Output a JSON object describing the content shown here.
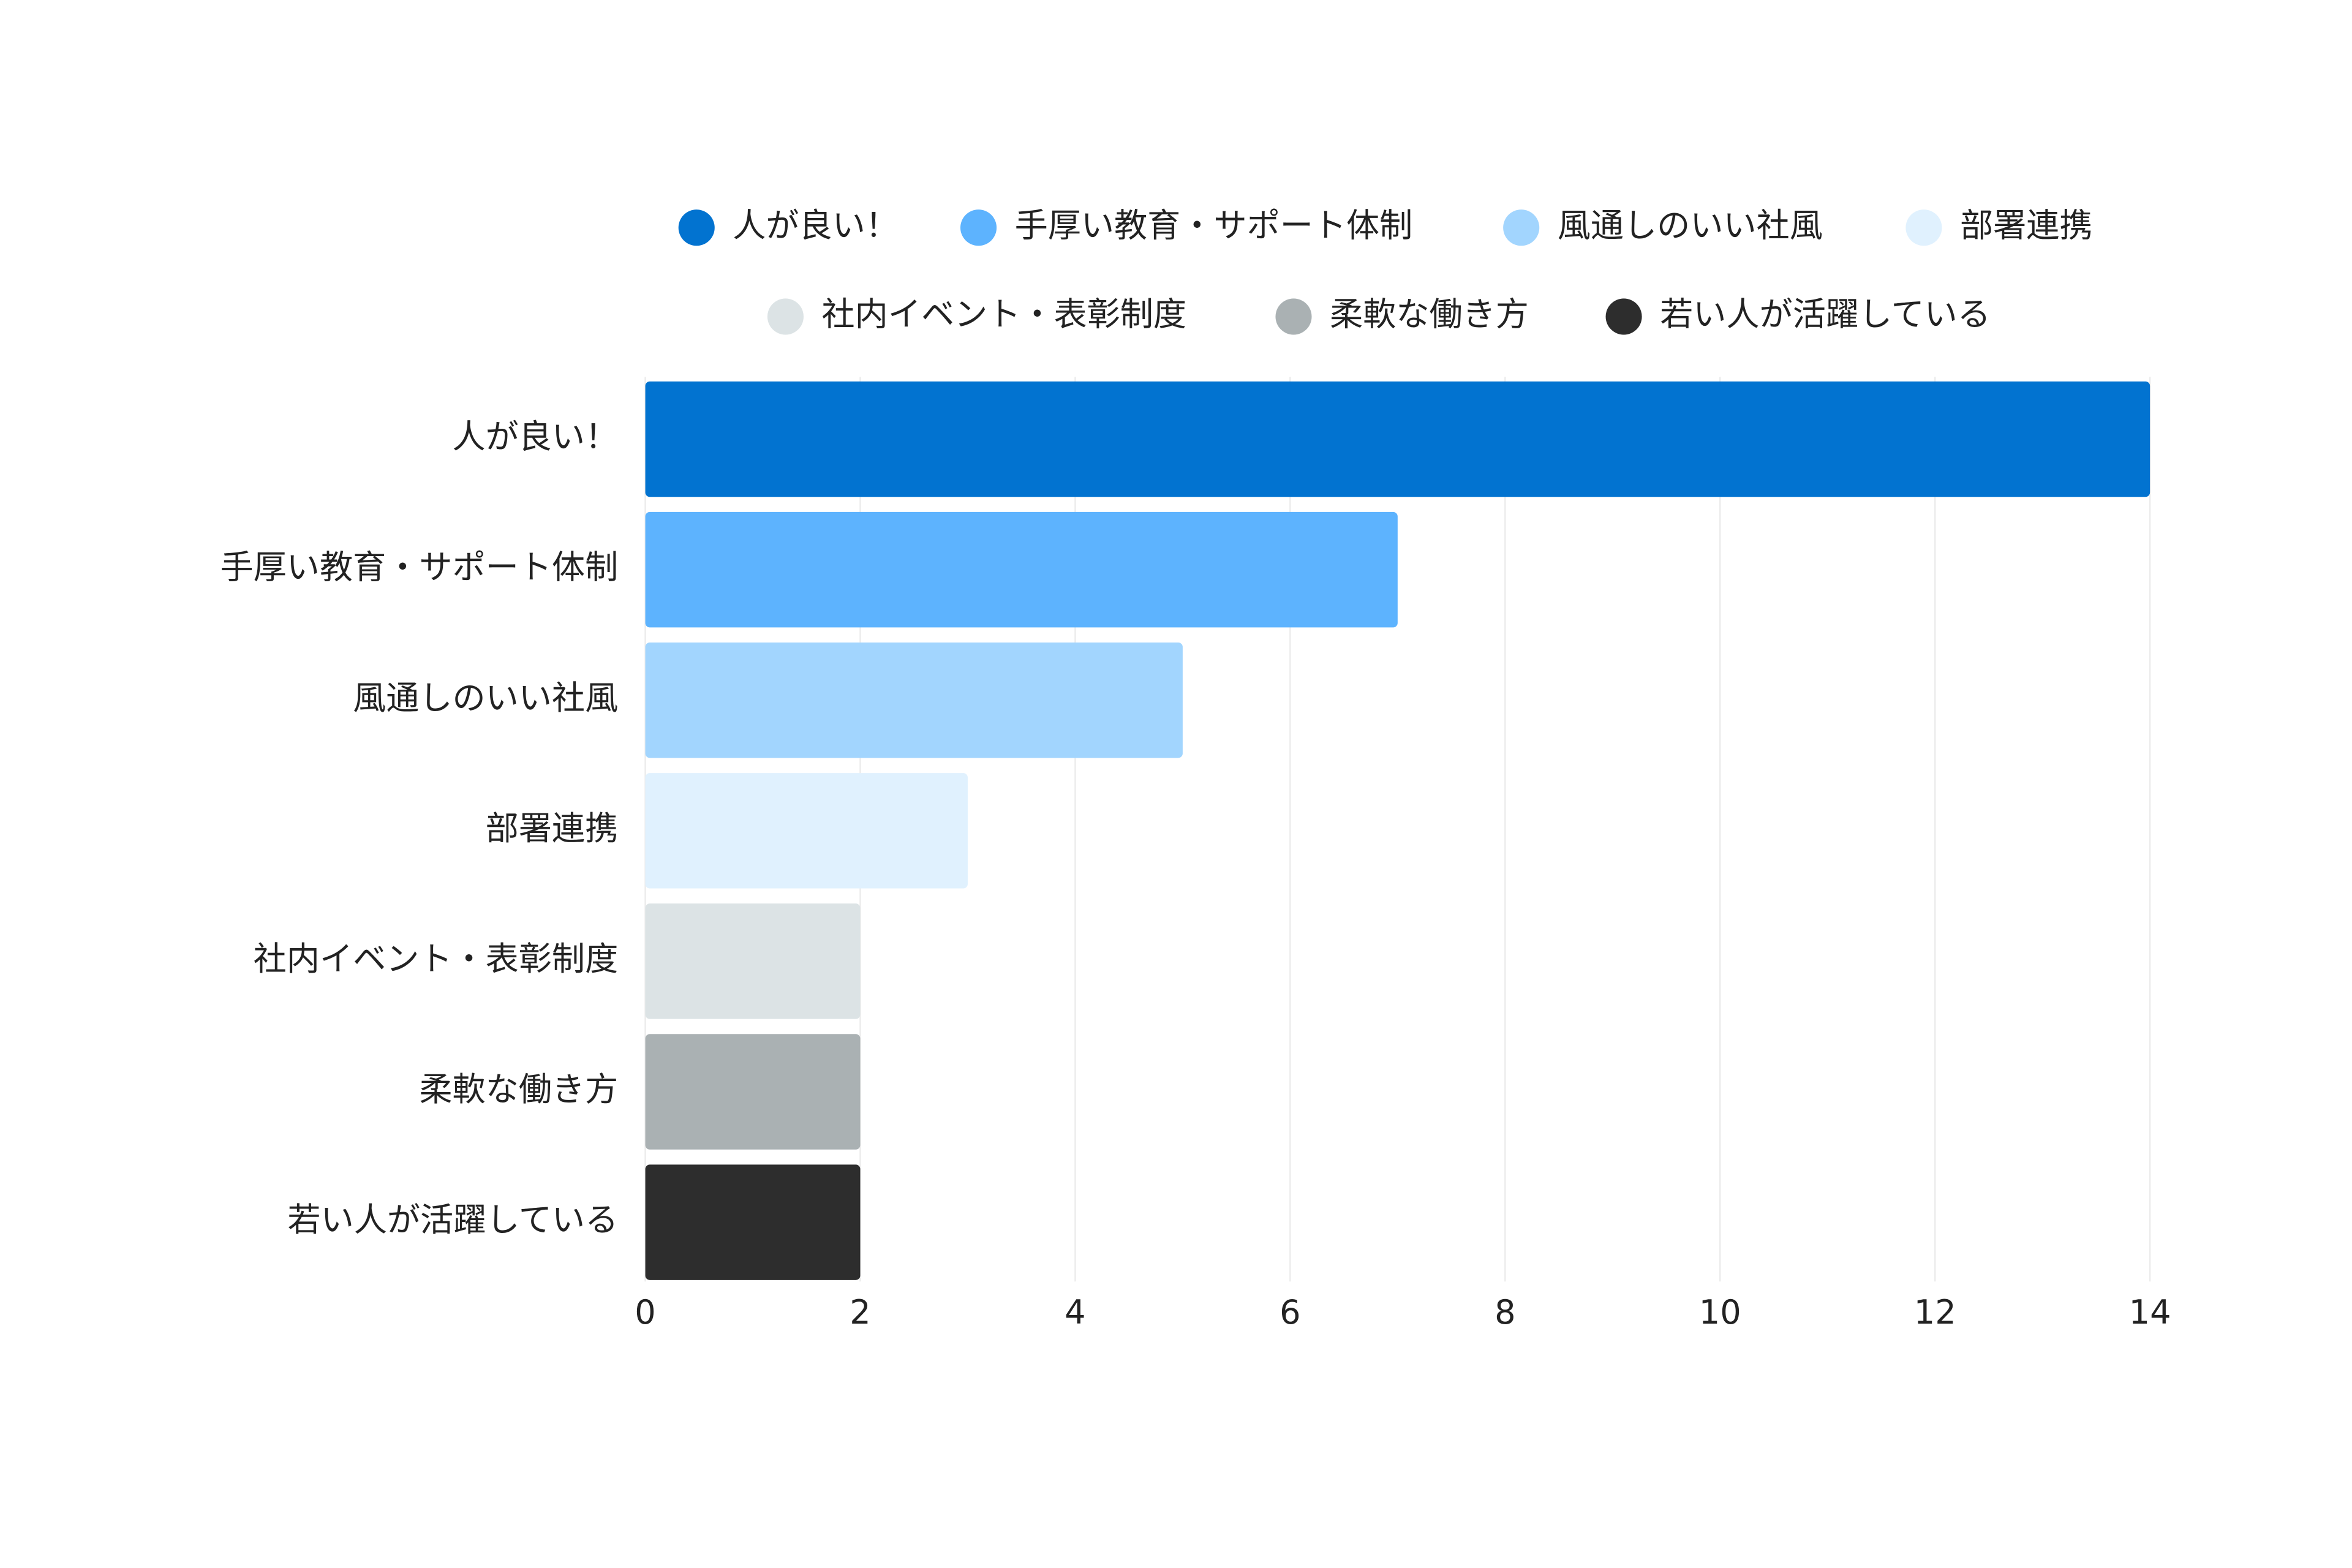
{
  "chart_data": {
    "type": "hbar",
    "categories": [
      "人が良い！",
      "手厚い教育・サポート体制",
      "風通しのいい社風",
      "部署連携",
      "社内イベント・表彰制度",
      "柔軟な働き方",
      "若い人が活躍している"
    ],
    "values": [
      14,
      7,
      5,
      3,
      2,
      2,
      2
    ],
    "colors": [
      "#0273d0",
      "#5db3fe",
      "#a2d5fe",
      "#e0f1fe",
      "#dce3e5",
      "#aab1b3",
      "#2d2d2d"
    ],
    "xlim": [
      0,
      14
    ],
    "xticks": [
      0,
      2,
      4,
      6,
      8,
      10,
      12,
      14
    ],
    "grid": true,
    "legend": "top"
  }
}
